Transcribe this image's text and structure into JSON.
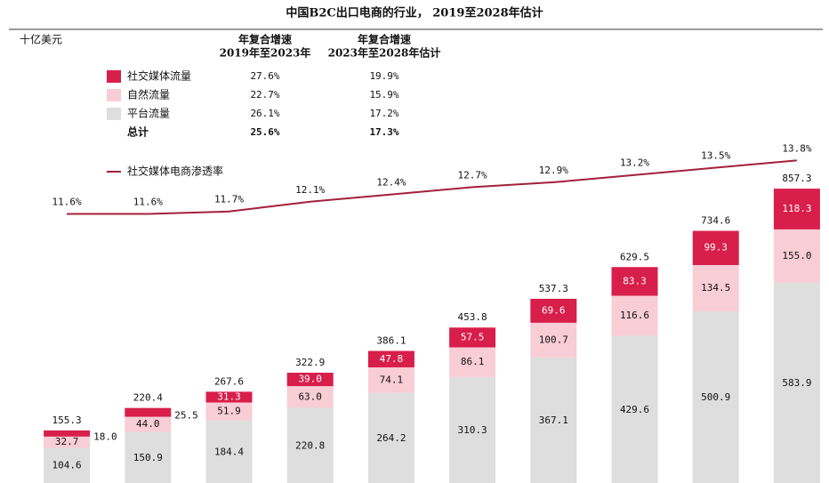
{
  "chart_data": {
    "type": "bar",
    "title": "中国B2C出口电商的行业， 2019至2028年估计",
    "y_label": "十亿美元",
    "cagr_headers": [
      [
        "年复合增速",
        "2019年至2023年"
      ],
      [
        "年复合增速",
        "2023年至2028年估计"
      ]
    ],
    "ylim": [
      0,
      1250
    ],
    "y2lim": [
      0.5,
      18.2
    ],
    "series": [
      {
        "name": "社交媒体流量",
        "color": "#d81e4b",
        "cagr": [
          "27.6%",
          "19.9%"
        ],
        "values": [
          18.0,
          25.5,
          31.3,
          39.0,
          47.8,
          57.5,
          69.6,
          83.3,
          99.3,
          118.3
        ],
        "value_labels": [
          "18.0",
          "25.5",
          "31.3",
          "39.0",
          "47.8",
          "57.5",
          "69.6",
          "83.3",
          "99.3",
          "118.3"
        ]
      },
      {
        "name": "自然流量",
        "color": "#f8cdd6",
        "cagr": [
          "22.7%",
          "15.9%"
        ],
        "values": [
          32.7,
          44.0,
          51.9,
          63.0,
          74.1,
          86.1,
          100.7,
          116.6,
          134.5,
          155.0
        ],
        "value_labels": [
          "32.7",
          "44.0",
          "51.9",
          "63.0",
          "74.1",
          "86.1",
          "100.7",
          "116.6",
          "134.5",
          "155.0"
        ]
      },
      {
        "name": "平台流量",
        "color": "#dedede",
        "cagr": [
          "26.1%",
          "17.2%"
        ],
        "values": [
          104.6,
          150.9,
          184.4,
          220.8,
          264.2,
          310.3,
          367.1,
          429.6,
          500.9,
          583.9
        ]
      },
      {
        "name": "社交媒体电商渗透率",
        "type": "line",
        "axis": "y2",
        "color": "#a3203a",
        "values": [
          11.6,
          11.6,
          11.7,
          12.1,
          12.4,
          12.7,
          12.9,
          13.2,
          13.5,
          13.8
        ],
        "value_labels": [
          "11.6%",
          "11.6%",
          "11.7%",
          "12.1%",
          "12.4%",
          "12.7%",
          "12.9%",
          "13.2%",
          "13.5%",
          "13.8%"
        ]
      }
    ],
    "total": {
      "name": "总计",
      "cagr": [
        "25.6%",
        "17.3%"
      ]
    },
    "totals": [
      155.3,
      220.4,
      267.6,
      322.9,
      386.1,
      453.8,
      537.3,
      629.5,
      734.6,
      857.3
    ]
  }
}
